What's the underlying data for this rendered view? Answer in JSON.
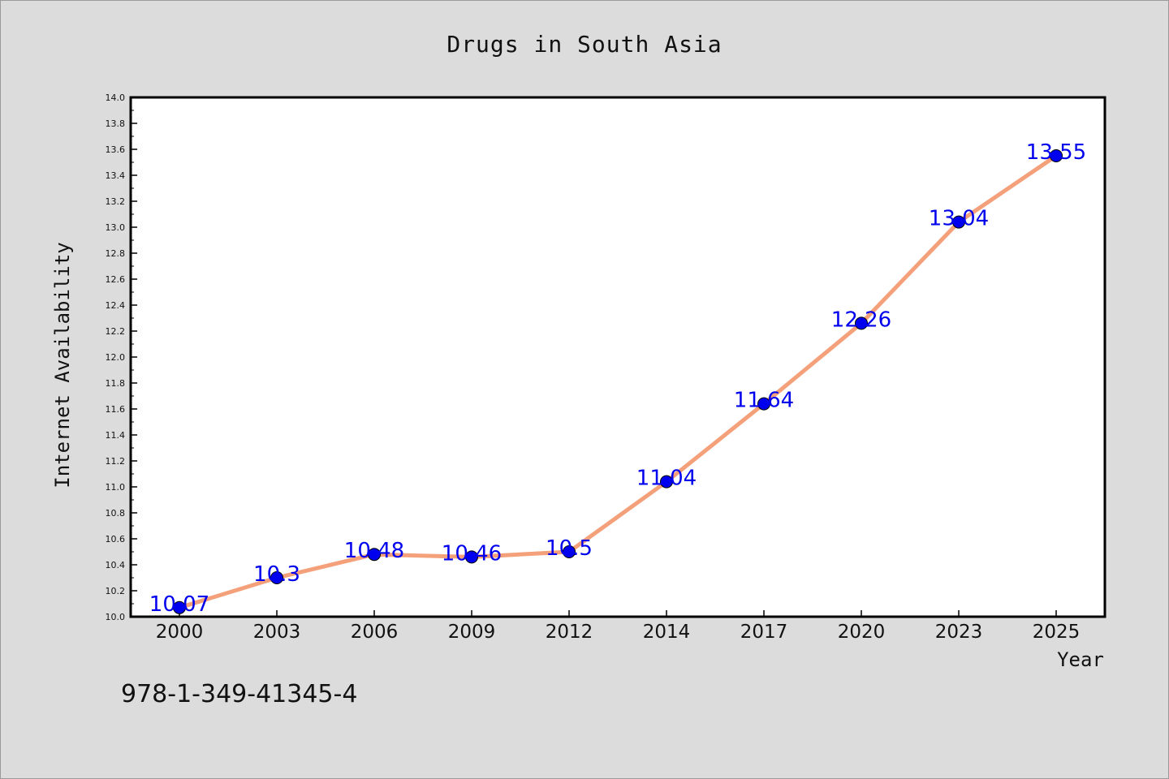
{
  "page": {
    "background": "#dcdcdc",
    "footer_text": "978-1-349-41345-4"
  },
  "chart_data": {
    "type": "line",
    "title": "Drugs in South Asia",
    "xlabel": "Year",
    "ylabel": "Internet Availability",
    "categories": [
      "2000",
      "2003",
      "2006",
      "2009",
      "2012",
      "2014",
      "2017",
      "2020",
      "2023",
      "2025"
    ],
    "series": [
      {
        "values": [
          10.07,
          10.3,
          10.48,
          10.46,
          10.5,
          11.04,
          11.64,
          12.26,
          13.04,
          13.55
        ],
        "data_labels": [
          "10.07",
          "10.3",
          "10.48",
          "10.46",
          "10.5",
          "11.04",
          "11.64",
          "12.26",
          "13.04",
          "13.55"
        ]
      }
    ],
    "ylim": [
      10.0,
      14.0
    ],
    "yticks": [
      "10.0",
      "10.2",
      "10.4",
      "10.6",
      "10.8",
      "11.0",
      "11.2",
      "11.4",
      "11.6",
      "11.8",
      "12.0",
      "12.2",
      "12.4",
      "12.6",
      "12.8",
      "13.0",
      "13.2",
      "13.4",
      "13.6",
      "13.8",
      "14.0"
    ],
    "grid": false,
    "legend": "none",
    "colors": {
      "line": "#f4a07a",
      "marker": "#0000ee",
      "data_label": "#0000ee",
      "plot_background": "#ffffff",
      "axis": "#000000"
    }
  }
}
